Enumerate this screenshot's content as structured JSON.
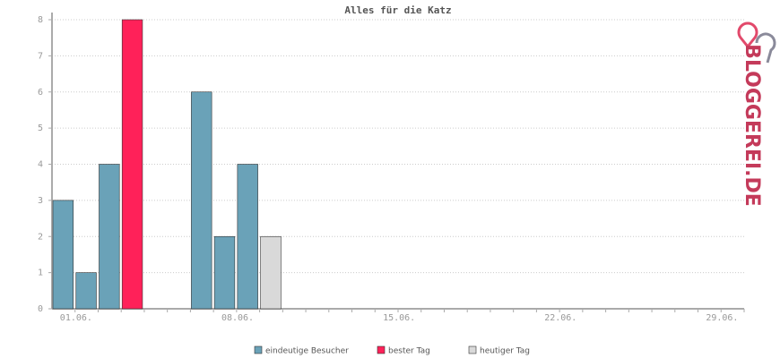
{
  "chart_data": {
    "type": "bar",
    "title": "Alles für die Katz",
    "logo": "BLOGGEREI.DE",
    "categories": [
      "01.06.",
      null,
      null,
      null,
      null,
      null,
      null,
      "08.06.",
      null,
      null,
      null,
      null,
      null,
      null,
      "15.06.",
      null,
      null,
      null,
      null,
      null,
      null,
      "22.06.",
      null,
      null,
      null,
      null,
      null,
      null,
      "29.06.",
      null
    ],
    "series": [
      {
        "name": "eindeutige Besucher",
        "color": "#6aa2b8",
        "values": [
          3,
          1,
          4,
          null,
          0,
          0,
          6,
          2,
          4,
          null,
          null,
          null,
          null,
          null,
          null,
          null,
          null,
          null,
          null,
          null,
          null,
          null,
          null,
          null,
          null,
          null,
          null,
          null,
          null,
          null
        ]
      },
      {
        "name": "bester Tag",
        "color": "#ff2159",
        "values": [
          null,
          null,
          null,
          8,
          null,
          null,
          null,
          null,
          null,
          null,
          null,
          null,
          null,
          null,
          null,
          null,
          null,
          null,
          null,
          null,
          null,
          null,
          null,
          null,
          null,
          null,
          null,
          null,
          null,
          null
        ]
      },
      {
        "name": "heutiger Tag",
        "color": "#d9d9d9",
        "values": [
          null,
          null,
          null,
          null,
          null,
          null,
          null,
          null,
          null,
          2,
          null,
          null,
          null,
          null,
          null,
          null,
          null,
          null,
          null,
          null,
          null,
          null,
          null,
          null,
          null,
          null,
          null,
          null,
          null,
          null
        ]
      }
    ],
    "ylim": [
      0,
      8
    ],
    "yticks": [
      0,
      1,
      2,
      3,
      4,
      5,
      6,
      7,
      8
    ],
    "grid": true
  }
}
